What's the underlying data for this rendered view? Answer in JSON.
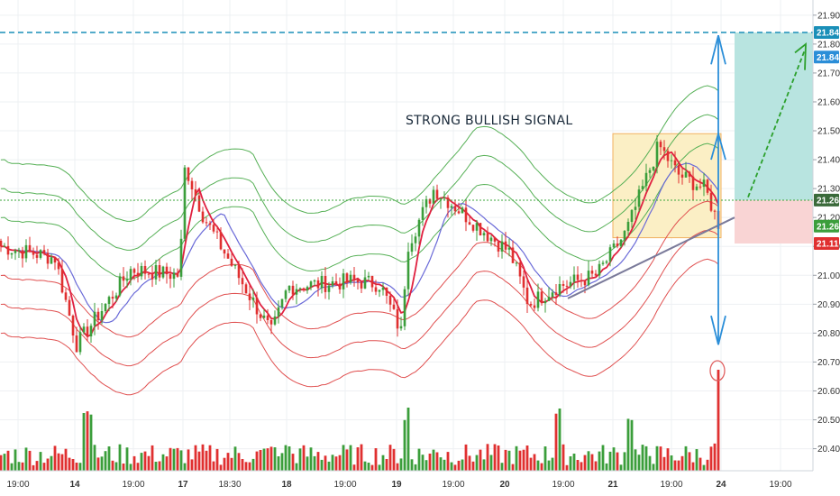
{
  "chart_data": {
    "type": "candlestick",
    "title": "",
    "annotation": "STRONG BULLISH SIGNAL",
    "y_axis": {
      "ticks": [
        21.9,
        21.8,
        21.7,
        21.6,
        21.5,
        21.4,
        21.3,
        21.2,
        21.1,
        21.0,
        20.9,
        20.8,
        20.7,
        20.6,
        20.5,
        20.4
      ],
      "range": [
        20.33,
        21.94
      ]
    },
    "x_axis": {
      "labels": [
        "19:00",
        "14",
        "19:00",
        "17",
        "18:30",
        "18",
        "19:00",
        "19",
        "19:00",
        "20",
        "19:00",
        "21",
        "19:00",
        "24",
        "19:00"
      ]
    },
    "levels": {
      "target": "21.84",
      "target_dup": "21.84",
      "entry": "21.26",
      "entry_dup": "21.26",
      "stop": "21.11"
    },
    "trade_zone": {
      "entry": 21.26,
      "target": 21.84,
      "stop": 21.11
    },
    "candle_count": 200,
    "key_prices": [
      {
        "index": 0,
        "price": 21.1
      },
      {
        "index": 20,
        "price": 21.06
      },
      {
        "index": 28,
        "price": 20.76
      },
      {
        "index": 48,
        "price": 21.02
      },
      {
        "index": 66,
        "price": 21.0
      },
      {
        "index": 68,
        "price": 21.38
      },
      {
        "index": 75,
        "price": 21.2
      },
      {
        "index": 100,
        "price": 20.8
      },
      {
        "index": 106,
        "price": 20.96
      },
      {
        "index": 130,
        "price": 20.98
      },
      {
        "index": 140,
        "price": 20.97
      },
      {
        "index": 148,
        "price": 20.8
      },
      {
        "index": 150,
        "price": 21.1
      },
      {
        "index": 160,
        "price": 21.3
      },
      {
        "index": 180,
        "price": 21.14
      },
      {
        "index": 188,
        "price": 21.08
      },
      {
        "index": 195,
        "price": 20.9
      },
      {
        "index": 205,
        "price": 20.96
      },
      {
        "index": 220,
        "price": 21.0
      },
      {
        "index": 231,
        "price": 21.15
      },
      {
        "index": 243,
        "price": 21.45
      },
      {
        "index": 250,
        "price": 21.35
      },
      {
        "index": 260,
        "price": 21.3
      },
      {
        "index": 265,
        "price": 21.18
      }
    ],
    "colors": {
      "up": "#3b9e3b",
      "down": "#e03030",
      "upper_bands": "#56b056",
      "lower_bands": "#e05050",
      "ma_fast": "#e02040",
      "ma_slow": "#6a6ad8",
      "entry_line": "#3aa63a",
      "target_line": "#1a8fb8",
      "arrow_blue": "#2b8ed8",
      "arrow_green": "#2ca02c",
      "trend_line": "#7a7a9a",
      "target_zone": "#b8e4e0",
      "stop_zone": "#f9d4d4",
      "pattern_box": "#fbefc5"
    }
  }
}
